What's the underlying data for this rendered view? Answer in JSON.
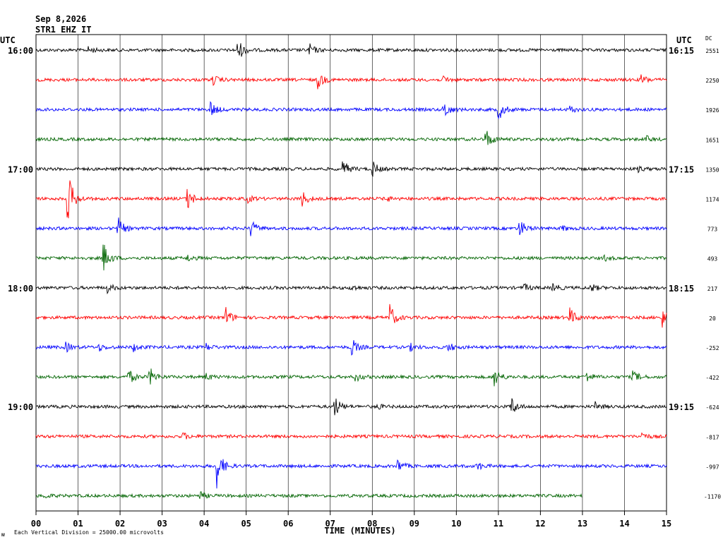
{
  "header": {
    "date": "Sep 8,2026",
    "station": "STR1 EHZ IT",
    "utc_left": "UTC",
    "utc_right": "UTC",
    "dc_label": "DC"
  },
  "footer": {
    "scale_note": "Each Vertical Division = 25000.00 microvolts",
    "logo_text": "ᴍ"
  },
  "chart_data": {
    "type": "line",
    "title": "",
    "xlabel": "TIME (MINUTES)",
    "ylabel": "",
    "xlim": [
      0,
      15
    ],
    "x_ticks": [
      "00",
      "01",
      "02",
      "03",
      "04",
      "05",
      "06",
      "07",
      "08",
      "09",
      "10",
      "11",
      "12",
      "13",
      "14",
      "15"
    ],
    "grid": "vertical lines at each minute",
    "trace_colors": [
      "#000000",
      "#ff0000",
      "#0000ff",
      "#006400"
    ],
    "left_time_labels": [
      {
        "row": 0,
        "text": "16:00"
      },
      {
        "row": 4,
        "text": "17:00"
      },
      {
        "row": 8,
        "text": "18:00"
      },
      {
        "row": 12,
        "text": "19:00"
      }
    ],
    "right_time_labels": [
      {
        "row": 0,
        "text": "16:15"
      },
      {
        "row": 4,
        "text": "17:15"
      },
      {
        "row": 8,
        "text": "18:15"
      },
      {
        "row": 12,
        "text": "19:15"
      }
    ],
    "traces": [
      {
        "row": 0,
        "dc": "2551",
        "end_minute": 15,
        "events": [
          [
            1.25,
            0.3
          ],
          [
            4.8,
            1.0
          ],
          [
            6.5,
            0.55
          ]
        ]
      },
      {
        "row": 1,
        "dc": "2250",
        "end_minute": 15,
        "events": [
          [
            4.2,
            0.45
          ],
          [
            6.7,
            0.85
          ],
          [
            9.7,
            0.3
          ],
          [
            14.4,
            0.45
          ]
        ]
      },
      {
        "row": 2,
        "dc": "1926",
        "end_minute": 15,
        "events": [
          [
            4.15,
            0.7
          ],
          [
            9.7,
            0.9
          ],
          [
            11.0,
            1.0
          ],
          [
            12.7,
            0.3
          ]
        ]
      },
      {
        "row": 3,
        "dc": "1651",
        "end_minute": 15,
        "events": [
          [
            10.7,
            1.0
          ],
          [
            14.5,
            0.3
          ]
        ]
      },
      {
        "row": 4,
        "dc": "1350",
        "end_minute": 15,
        "events": [
          [
            7.3,
            0.8
          ],
          [
            8.0,
            0.7
          ],
          [
            14.3,
            0.25
          ]
        ]
      },
      {
        "row": 5,
        "dc": "1174",
        "end_minute": 15,
        "events": [
          [
            0.75,
            2.6
          ],
          [
            3.6,
            1.0
          ],
          [
            5.0,
            0.4
          ],
          [
            6.3,
            0.9
          ],
          [
            8.3,
            0.3
          ]
        ]
      },
      {
        "row": 6,
        "dc": "773",
        "end_minute": 15,
        "events": [
          [
            1.95,
            0.95
          ],
          [
            5.1,
            0.8
          ],
          [
            11.5,
            0.85
          ],
          [
            12.5,
            0.25
          ]
        ]
      },
      {
        "row": 7,
        "dc": "493",
        "end_minute": 15,
        "events": [
          [
            1.6,
            1.4
          ],
          [
            3.6,
            0.3
          ],
          [
            13.5,
            0.25
          ]
        ]
      },
      {
        "row": 8,
        "dc": "217",
        "end_minute": 15,
        "events": [
          [
            1.7,
            0.4
          ],
          [
            7.5,
            0.3
          ],
          [
            11.6,
            0.35
          ],
          [
            12.3,
            0.4
          ],
          [
            13.2,
            0.35
          ]
        ]
      },
      {
        "row": 9,
        "dc": "20",
        "end_minute": 15,
        "events": [
          [
            4.5,
            1.0
          ],
          [
            8.4,
            1.35
          ],
          [
            12.7,
            0.85
          ],
          [
            14.9,
            0.9
          ]
        ]
      },
      {
        "row": 10,
        "dc": "-252",
        "end_minute": 15,
        "events": [
          [
            0.7,
            0.45
          ],
          [
            1.5,
            0.3
          ],
          [
            2.3,
            0.4
          ],
          [
            4.05,
            0.3
          ],
          [
            7.5,
            0.85
          ],
          [
            8.9,
            0.3
          ],
          [
            9.8,
            0.45
          ]
        ]
      },
      {
        "row": 11,
        "dc": "-422",
        "end_minute": 15,
        "events": [
          [
            2.2,
            0.7
          ],
          [
            2.7,
            0.85
          ],
          [
            4.05,
            0.3
          ],
          [
            7.6,
            0.4
          ],
          [
            10.9,
            0.95
          ],
          [
            13.1,
            0.45
          ],
          [
            14.2,
            0.55
          ]
        ]
      },
      {
        "row": 12,
        "dc": "-624",
        "end_minute": 15,
        "events": [
          [
            7.1,
            0.95
          ],
          [
            11.3,
            0.9
          ],
          [
            13.3,
            0.35
          ],
          [
            8.1,
            0.25
          ]
        ]
      },
      {
        "row": 13,
        "dc": "-817",
        "end_minute": 15,
        "events": [
          [
            3.5,
            0.3
          ],
          [
            14.4,
            0.35
          ]
        ]
      },
      {
        "row": 14,
        "dc": "-997",
        "end_minute": 15,
        "events": [
          [
            4.3,
            1.9
          ],
          [
            8.6,
            0.6
          ],
          [
            10.5,
            0.35
          ]
        ]
      },
      {
        "row": 15,
        "dc": "-1170",
        "end_minute": 13,
        "events": [
          [
            0.2,
            0.2
          ],
          [
            3.9,
            0.35
          ]
        ]
      }
    ]
  }
}
